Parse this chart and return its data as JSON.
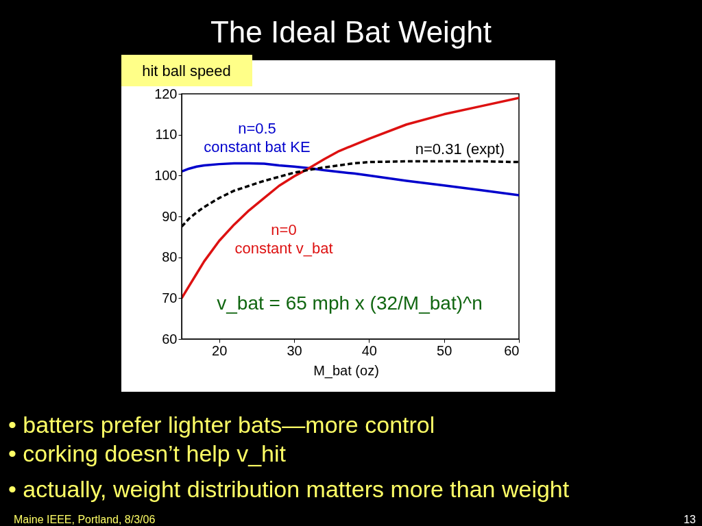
{
  "chart_data": {
    "type": "line",
    "title": "The Ideal Bat Weight",
    "ylabel": "hit ball speed",
    "xlabel": "M_bat (oz)",
    "xlim": [
      15,
      60
    ],
    "xticks": [
      20,
      30,
      40,
      50,
      60
    ],
    "ylim": [
      60,
      120
    ],
    "yticks": [
      60,
      70,
      80,
      90,
      100,
      110,
      120
    ],
    "grid": false,
    "legend": false,
    "series": [
      {
        "name": "n=0.5\nconstant bat KE",
        "color": "#0000cc",
        "x": [
          15,
          16,
          17,
          18,
          20,
          22,
          24,
          26,
          28,
          30,
          32,
          34,
          36,
          38,
          40,
          45,
          50,
          55,
          60
        ],
        "values": [
          101,
          101.7,
          102.2,
          102.5,
          102.8,
          103,
          103,
          102.9,
          102.5,
          102.2,
          101.8,
          101.3,
          100.9,
          100.5,
          100,
          98.7,
          97.6,
          96.4,
          95.2
        ]
      },
      {
        "name": "n=0\nconstant v_bat",
        "color": "#dd1111",
        "x": [
          15,
          16,
          17,
          18,
          20,
          22,
          24,
          26,
          28,
          30,
          32,
          34,
          36,
          38,
          40,
          45,
          50,
          55,
          60
        ],
        "values": [
          70,
          73,
          76,
          79,
          84,
          88,
          91.5,
          94.5,
          97.5,
          99.8,
          101.8,
          104,
          106,
          107.5,
          109,
          112.5,
          115,
          117,
          119
        ]
      },
      {
        "name": "n=0.31 (expt)",
        "color": "#000000",
        "line_style": "dashed",
        "x": [
          15,
          16,
          17,
          18,
          20,
          22,
          24,
          26,
          28,
          30,
          32,
          34,
          36,
          38,
          40,
          45,
          50,
          55,
          60
        ],
        "values": [
          87.5,
          89.5,
          91,
          92.3,
          94.5,
          96.3,
          97.5,
          98.7,
          99.7,
          100.7,
          101.4,
          102,
          102.5,
          103,
          103.3,
          103.5,
          103.5,
          103.5,
          103.3
        ]
      }
    ],
    "annotations": [
      "v_bat = 65 mph x (32/M_bat)^n",
      "• batters prefer lighter bats—more control",
      "• corking doesn’t help v_hit",
      "• actually, weight distribution matters more than weight",
      "Maine IEEE, Portland,  8/3/06",
      "13"
    ]
  }
}
